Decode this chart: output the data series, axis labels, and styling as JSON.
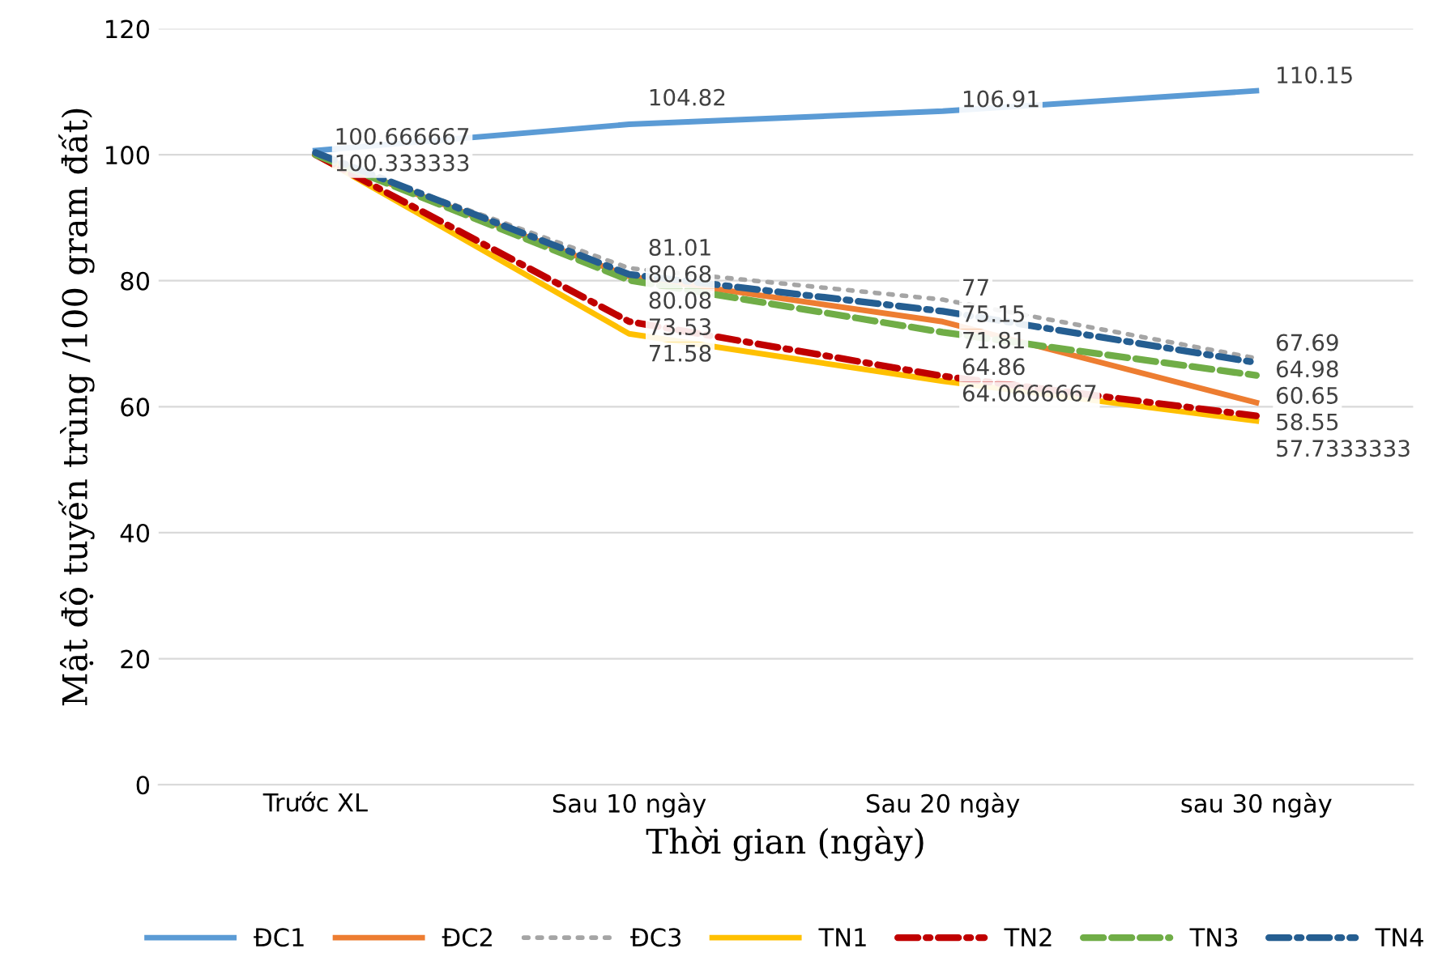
{
  "chart_data": {
    "type": "line",
    "xlabel": "Thời gian (ngày)",
    "ylabel": "Mật độ tuyến trùng /100 gram đất)",
    "categories": [
      "Trước XL",
      "Sau 10 ngày",
      "Sau 20 ngày",
      "sau 30 ngày"
    ],
    "ylim": [
      0,
      120
    ],
    "yticks": [
      0,
      20,
      40,
      60,
      80,
      100,
      120
    ],
    "grid": "y",
    "legend": "bottom",
    "series": [
      {
        "name": "ĐC1",
        "color": "#5b9bd5",
        "line_style": "solid",
        "values": [
          100.666667,
          104.82,
          106.91,
          110.15
        ],
        "value_labels": [
          "100.666667",
          "104.82",
          "106.91",
          "110.15"
        ]
      },
      {
        "name": "ĐC2",
        "color": "#ed7d31",
        "line_style": "solid",
        "values": [
          100,
          80.68,
          73.5,
          60.65
        ],
        "value_labels": [
          null,
          "80.68",
          null,
          "60.65"
        ]
      },
      {
        "name": "ĐC3",
        "color": "#a5a5a5",
        "line_style": "dotted",
        "values": [
          100,
          82,
          77,
          67.69
        ],
        "value_labels": [
          null,
          null,
          "77",
          "67.69"
        ]
      },
      {
        "name": "TN1",
        "color": "#ffc000",
        "line_style": "solid",
        "values": [
          100,
          71.58,
          64.0666667,
          57.7333333
        ],
        "value_labels": [
          null,
          "71.58",
          "64.0666667",
          "57.7333333"
        ]
      },
      {
        "name": "TN2",
        "color": "#c00000",
        "line_style": "dashdot",
        "values": [
          100,
          73.53,
          64.86,
          58.55
        ],
        "value_labels": [
          null,
          "73.53",
          "64.86",
          "58.55"
        ]
      },
      {
        "name": "TN3",
        "color": "#70ad47",
        "line_style": "dashed",
        "values": [
          100,
          80.08,
          71.81,
          64.98
        ],
        "value_labels": [
          null,
          "80.08",
          "71.81",
          "64.98"
        ]
      },
      {
        "name": "TN4",
        "color": "#255e91",
        "line_style": "dashdot",
        "values": [
          100.333333,
          81.01,
          75.15,
          67.0
        ],
        "value_labels": [
          "100.333333",
          "81.01",
          "75.15",
          null
        ]
      }
    ]
  }
}
